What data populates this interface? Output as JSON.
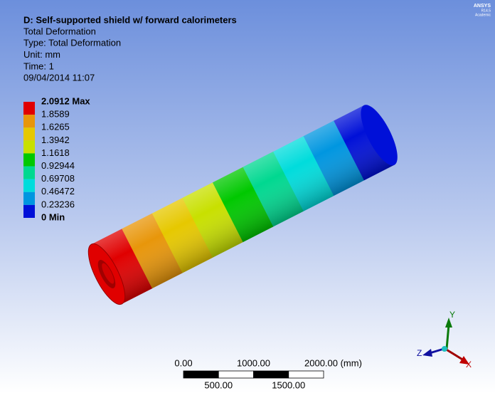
{
  "header": {
    "title": "D: Self-supported shield w/ forward calorimeters",
    "lines": [
      "Total Deformation",
      "Type: Total Deformation",
      "Unit: mm",
      "Time: 1",
      "09/04/2014 11:07"
    ]
  },
  "legend": {
    "labels": [
      "2.0912 Max",
      "1.8589",
      "1.6265",
      "1.3942",
      "1.1618",
      "0.92944",
      "0.69708",
      "0.46472",
      "0.23236",
      "0 Min"
    ],
    "colors": [
      "#e00000",
      "#e8960a",
      "#e6c800",
      "#c8e000",
      "#00c800",
      "#00d890",
      "#00dcdc",
      "#0096e0",
      "#0010d8"
    ]
  },
  "scale_bar": {
    "top_labels": [
      "0.00",
      "1000.00",
      "2000.00 (mm)"
    ],
    "bottom_labels": [
      "500.00",
      "1500.00"
    ]
  },
  "triad": {
    "x": "X",
    "y": "Y",
    "z": "Z"
  },
  "logo": {
    "name": "ANSYS",
    "version": "R14.5",
    "edition": "Academic"
  }
}
